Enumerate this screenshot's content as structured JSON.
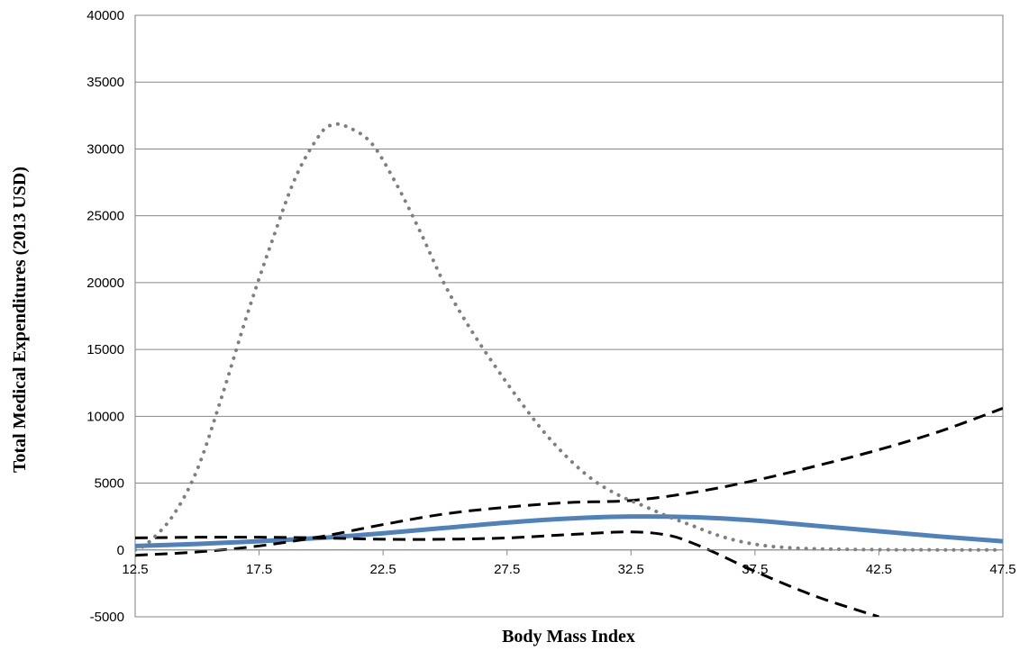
{
  "chart_data": {
    "type": "line",
    "title": "",
    "xlabel": "Body Mass Index",
    "ylabel": "Total Medical Expenditures (2013 USD)",
    "xlim": [
      12.5,
      47.5
    ],
    "ylim": [
      -5000,
      40000
    ],
    "x_ticks": [
      "12.5",
      "17.5",
      "22.5",
      "27.5",
      "32.5",
      "37.5",
      "42.5",
      "47.5"
    ],
    "y_ticks": [
      "-5000",
      "0",
      "5000",
      "10000",
      "15000",
      "20000",
      "25000",
      "30000",
      "35000",
      "40000"
    ],
    "grid": "horizontal",
    "legend": "none",
    "series": [
      {
        "style": "solid",
        "color": "#4f81bd",
        "points": [
          [
            12.5,
            300
          ],
          [
            15,
            450
          ],
          [
            17.5,
            650
          ],
          [
            20,
            900
          ],
          [
            22.5,
            1250
          ],
          [
            25,
            1650
          ],
          [
            27.5,
            2050
          ],
          [
            30,
            2350
          ],
          [
            32.5,
            2500
          ],
          [
            35,
            2450
          ],
          [
            37.5,
            2200
          ],
          [
            40,
            1800
          ],
          [
            42.5,
            1400
          ],
          [
            45,
            1000
          ],
          [
            47.5,
            650
          ]
        ]
      },
      {
        "style": "dashed",
        "color": "#000000",
        "points": [
          [
            12.5,
            -400
          ],
          [
            15,
            -150
          ],
          [
            17.5,
            300
          ],
          [
            20,
            1000
          ],
          [
            22.5,
            1900
          ],
          [
            25,
            2700
          ],
          [
            27.5,
            3200
          ],
          [
            30,
            3550
          ],
          [
            32.5,
            3700
          ],
          [
            35,
            4300
          ],
          [
            37.5,
            5200
          ],
          [
            40,
            6300
          ],
          [
            42.5,
            7500
          ],
          [
            45,
            8900
          ],
          [
            47.5,
            10600
          ]
        ]
      },
      {
        "style": "dashed",
        "color": "#000000",
        "points": [
          [
            12.5,
            900
          ],
          [
            15,
            950
          ],
          [
            17.5,
            950
          ],
          [
            20,
            900
          ],
          [
            22.5,
            800
          ],
          [
            25,
            800
          ],
          [
            27.5,
            900
          ],
          [
            30,
            1150
          ],
          [
            32.5,
            1350
          ],
          [
            34,
            1100
          ],
          [
            35,
            500
          ],
          [
            36,
            -300
          ],
          [
            37.5,
            -1600
          ],
          [
            40,
            -3500
          ],
          [
            42.5,
            -5000
          ]
        ]
      },
      {
        "style": "dotted",
        "color": "#7f7f7f",
        "points": [
          [
            12.5,
            0
          ],
          [
            13,
            500
          ],
          [
            14,
            2500
          ],
          [
            15,
            6000
          ],
          [
            16,
            11500
          ],
          [
            17,
            17500
          ],
          [
            18,
            23000
          ],
          [
            19,
            28000
          ],
          [
            20,
            31200
          ],
          [
            20.5,
            31800
          ],
          [
            21,
            31700
          ],
          [
            22,
            30500
          ],
          [
            23,
            27500
          ],
          [
            24,
            23800
          ],
          [
            25,
            19800
          ],
          [
            26,
            16600
          ],
          [
            27,
            13800
          ],
          [
            28,
            11200
          ],
          [
            29,
            8800
          ],
          [
            30,
            6800
          ],
          [
            31,
            5200
          ],
          [
            32,
            4100
          ],
          [
            33,
            3300
          ],
          [
            34,
            2500
          ],
          [
            35,
            1800
          ],
          [
            36,
            1100
          ],
          [
            37,
            600
          ],
          [
            38,
            300
          ],
          [
            39,
            150
          ],
          [
            40,
            80
          ],
          [
            42.5,
            20
          ],
          [
            45,
            5
          ],
          [
            47.5,
            0
          ]
        ]
      }
    ]
  }
}
